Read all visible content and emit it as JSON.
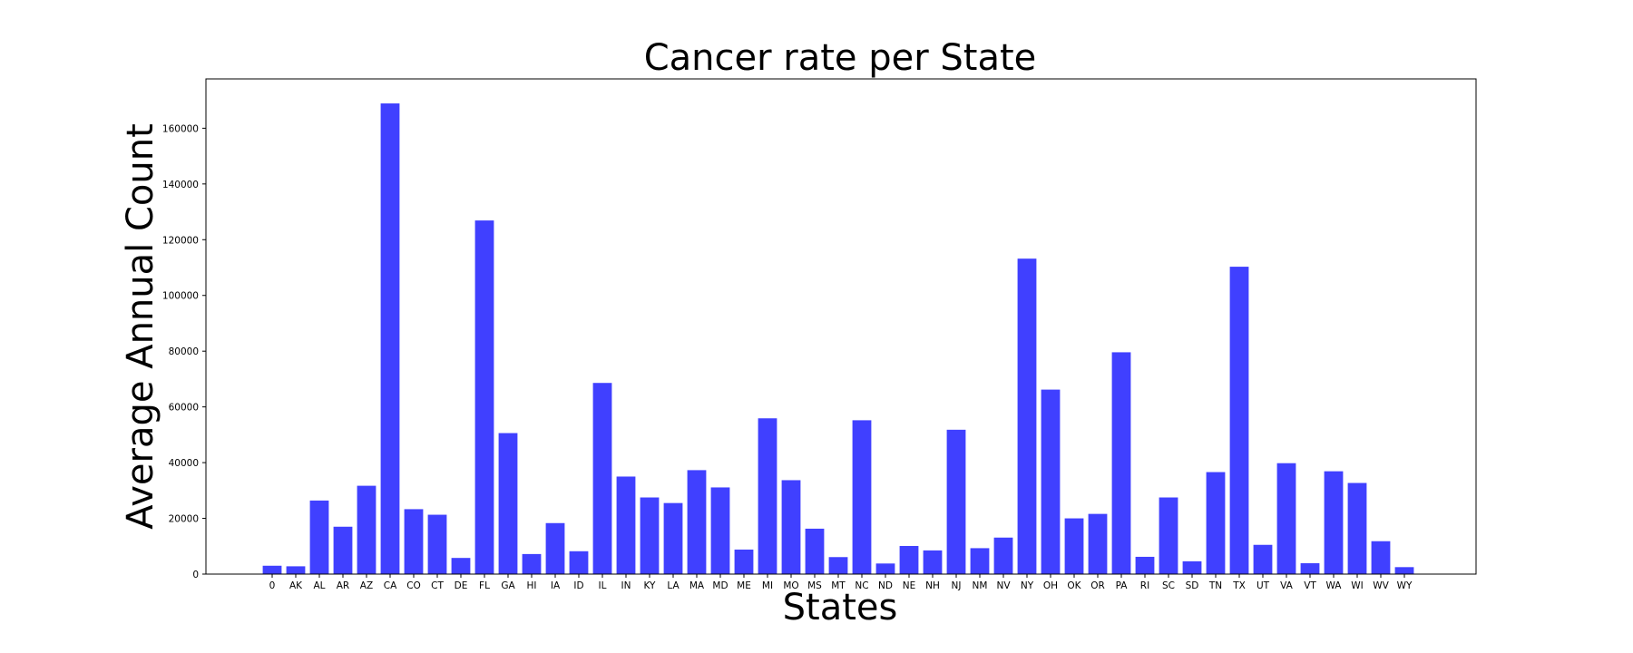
{
  "chart_data": {
    "type": "bar",
    "title": "Cancer rate per State",
    "xlabel": "States",
    "ylabel": "Average Annual Count",
    "categories": [
      "0",
      "AK",
      "AL",
      "AR",
      "AZ",
      "CA",
      "CO",
      "CT",
      "DE",
      "FL",
      "GA",
      "HI",
      "IA",
      "ID",
      "IL",
      "IN",
      "KY",
      "LA",
      "MA",
      "MD",
      "ME",
      "MI",
      "MO",
      "MS",
      "MT",
      "NC",
      "ND",
      "NE",
      "NH",
      "NJ",
      "NM",
      "NV",
      "NY",
      "OH",
      "OK",
      "OR",
      "PA",
      "RI",
      "SC",
      "SD",
      "TN",
      "TX",
      "UT",
      "VA",
      "VT",
      "WA",
      "WI",
      "WV",
      "WY"
    ],
    "values": [
      3000,
      2800,
      26400,
      17000,
      31700,
      168900,
      23300,
      21300,
      5800,
      126900,
      50600,
      7200,
      18300,
      8200,
      68600,
      35000,
      27500,
      25500,
      37300,
      31100,
      8800,
      55900,
      33700,
      16300,
      6100,
      55200,
      3800,
      10100,
      8500,
      51800,
      9300,
      13100,
      113200,
      66200,
      20000,
      21600,
      79600,
      6200,
      27500,
      4600,
      36600,
      110300,
      10500,
      39800,
      3900,
      36900,
      32700,
      11800,
      2500
    ],
    "ylim": [
      0,
      177700
    ],
    "yticks": [
      0,
      20000,
      40000,
      60000,
      80000,
      100000,
      120000,
      140000,
      160000
    ],
    "ytick_labels": [
      "0",
      "20000",
      "40000",
      "60000",
      "80000",
      "100000",
      "120000",
      "140000",
      "160000"
    ],
    "bar_color": "#4040ff",
    "grid": false,
    "legend": "none"
  }
}
